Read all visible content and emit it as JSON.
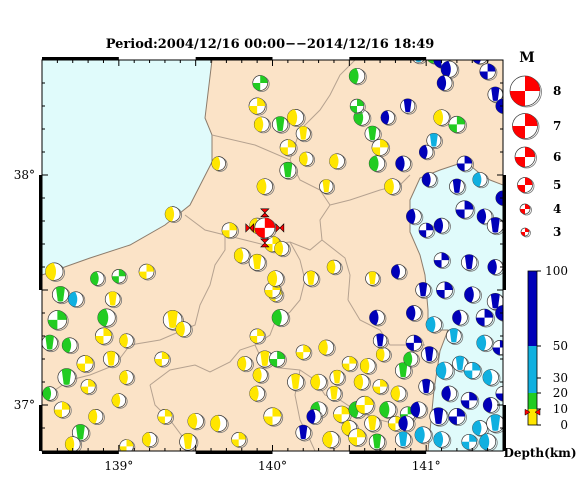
{
  "title": "Period:2004/12/16 00:00−−2014/12/16 18:49",
  "map": {
    "lon_range": [
      138.5,
      141.5
    ],
    "lat_range": [
      36.8,
      38.5
    ],
    "x_ticks": [
      {
        "value": 139,
        "label": "139°"
      },
      {
        "value": 140,
        "label": "140°"
      },
      {
        "value": 141,
        "label": "141°"
      }
    ],
    "y_ticks": [
      {
        "value": 38,
        "label": "38°"
      },
      {
        "value": 37,
        "label": "37°"
      }
    ],
    "colors": {
      "sea": "#e0fbfb",
      "land": "#fbe3c7",
      "border": "#b5a290",
      "coast": "#8c7c6c",
      "frame": "#000000"
    }
  },
  "magnitude_legend": {
    "header": "M",
    "items": [
      {
        "label": "8",
        "m": 8
      },
      {
        "label": "7",
        "m": 7
      },
      {
        "label": "6",
        "m": 6
      },
      {
        "label": "5",
        "m": 5
      },
      {
        "label": "4",
        "m": 4
      },
      {
        "label": "3",
        "m": 3
      }
    ]
  },
  "depth_legend": {
    "title": "Depth(km)",
    "ticks": [
      {
        "value": 0,
        "label": "0"
      },
      {
        "value": 10,
        "label": "10"
      },
      {
        "value": 20,
        "label": "20"
      },
      {
        "value": 30,
        "label": "30"
      },
      {
        "value": 50,
        "label": "50"
      },
      {
        "value": 100,
        "label": "100"
      }
    ],
    "bands": [
      {
        "from": 0,
        "to": 10,
        "color": "#ffe600"
      },
      {
        "from": 10,
        "to": 20,
        "color": "#22cc22"
      },
      {
        "from": 20,
        "to": 50,
        "color": "#10b0e0"
      },
      {
        "from": 50,
        "to": 100,
        "color": "#0000b8"
      }
    ],
    "marker_depth": 8
  },
  "highlight_event": {
    "lon": 139.95,
    "lat": 37.77,
    "m": 5.2,
    "depth": 8,
    "color": "#ff0000"
  },
  "events": [
    [
      138.58,
      37.58,
      4.8,
      5,
      "rs"
    ],
    [
      138.62,
      37.48,
      4.6,
      15,
      "th"
    ],
    [
      138.6,
      37.37,
      5.0,
      15,
      "ss"
    ],
    [
      138.72,
      37.46,
      4.4,
      25,
      "rs"
    ],
    [
      138.55,
      37.27,
      4.5,
      15,
      "th"
    ],
    [
      138.68,
      37.26,
      4.4,
      15,
      "rs"
    ],
    [
      138.78,
      37.18,
      4.6,
      5,
      "ss"
    ],
    [
      138.66,
      37.12,
      4.8,
      15,
      "th"
    ],
    [
      138.55,
      37.05,
      4.2,
      15,
      "rs"
    ],
    [
      138.63,
      36.98,
      4.5,
      5,
      "ss"
    ],
    [
      138.85,
      36.95,
      4.3,
      5,
      "rs"
    ],
    [
      138.75,
      36.88,
      4.6,
      15,
      "th"
    ],
    [
      138.9,
      37.3,
      4.6,
      5,
      "ss"
    ],
    [
      138.96,
      37.46,
      4.4,
      5,
      "th"
    ],
    [
      138.86,
      37.55,
      4.2,
      15,
      "rs"
    ],
    [
      139.0,
      37.56,
      4.2,
      15,
      "ss"
    ],
    [
      138.92,
      37.38,
      4.8,
      15,
      "rs"
    ],
    [
      138.95,
      37.2,
      4.5,
      5,
      "th"
    ],
    [
      139.05,
      37.28,
      4.2,
      5,
      "rs"
    ],
    [
      138.8,
      37.08,
      4.3,
      5,
      "ss"
    ],
    [
      139.18,
      37.58,
      4.4,
      5,
      "ss"
    ],
    [
      139.0,
      37.02,
      4.2,
      5,
      "rs"
    ],
    [
      139.35,
      37.37,
      5.0,
      5,
      "th"
    ],
    [
      139.42,
      37.33,
      4.4,
      5,
      "rs"
    ],
    [
      139.28,
      37.2,
      4.3,
      5,
      "ss"
    ],
    [
      139.05,
      37.12,
      4.2,
      5,
      "rs"
    ],
    [
      139.3,
      36.95,
      4.3,
      5,
      "ss"
    ],
    [
      139.5,
      36.93,
      4.5,
      5,
      "rs"
    ],
    [
      139.45,
      36.84,
      4.7,
      5,
      "th"
    ],
    [
      139.2,
      36.85,
      4.3,
      5,
      "rs"
    ],
    [
      139.05,
      36.82,
      4.2,
      5,
      "ss"
    ],
    [
      138.7,
      36.83,
      4.4,
      5,
      "rs"
    ],
    [
      139.9,
      37.3,
      4.3,
      5,
      "ss"
    ],
    [
      140.05,
      37.38,
      4.6,
      15,
      "rs"
    ],
    [
      140.25,
      37.55,
      4.4,
      5,
      "th"
    ],
    [
      140.02,
      37.48,
      4.2,
      5,
      "ss"
    ],
    [
      139.82,
      37.18,
      4.3,
      5,
      "rs"
    ],
    [
      139.95,
      37.2,
      4.6,
      5,
      "th"
    ],
    [
      140.03,
      37.2,
      4.5,
      15,
      "ss"
    ],
    [
      139.92,
      37.13,
      4.3,
      5,
      "rs"
    ],
    [
      140.2,
      37.23,
      4.3,
      5,
      "ss"
    ],
    [
      140.35,
      37.25,
      4.4,
      5,
      "rs"
    ],
    [
      140.15,
      37.1,
      4.6,
      5,
      "th"
    ],
    [
      139.9,
      37.05,
      4.4,
      5,
      "rs"
    ],
    [
      140.0,
      36.95,
      4.8,
      5,
      "ss"
    ],
    [
      139.65,
      36.92,
      4.6,
      5,
      "rs"
    ],
    [
      139.78,
      36.85,
      4.3,
      5,
      "ss"
    ],
    [
      140.3,
      36.98,
      4.5,
      15,
      "rs"
    ],
    [
      140.4,
      37.05,
      4.3,
      5,
      "th"
    ],
    [
      140.45,
      36.96,
      4.6,
      5,
      "ss"
    ],
    [
      140.5,
      36.9,
      4.4,
      5,
      "rs"
    ],
    [
      140.55,
      36.98,
      4.6,
      15,
      "rs"
    ],
    [
      140.6,
      37.0,
      4.8,
      5,
      "ss"
    ],
    [
      140.65,
      36.92,
      4.5,
      5,
      "th"
    ],
    [
      140.58,
      37.1,
      4.4,
      5,
      "rs"
    ],
    [
      140.7,
      37.08,
      4.3,
      5,
      "ss"
    ],
    [
      140.75,
      36.98,
      4.6,
      15,
      "rs"
    ],
    [
      140.55,
      36.86,
      4.7,
      5,
      "ss"
    ],
    [
      140.68,
      36.84,
      4.5,
      15,
      "th"
    ],
    [
      140.82,
      37.05,
      4.4,
      5,
      "rs"
    ],
    [
      140.8,
      36.92,
      4.3,
      5,
      "ss"
    ],
    [
      140.62,
      37.17,
      4.4,
      5,
      "rs"
    ],
    [
      140.5,
      37.18,
      4.3,
      5,
      "ss"
    ],
    [
      140.72,
      37.22,
      4.2,
      5,
      "rs"
    ],
    [
      140.85,
      37.15,
      4.5,
      15,
      "th"
    ],
    [
      140.88,
      36.96,
      4.4,
      15,
      "ss"
    ],
    [
      140.38,
      36.85,
      4.6,
      5,
      "rs"
    ],
    [
      140.2,
      36.88,
      4.4,
      75,
      "th"
    ],
    [
      140.27,
      36.95,
      4.3,
      50,
      "rs"
    ],
    [
      140.42,
      37.12,
      4.3,
      5,
      "th"
    ],
    [
      140.3,
      37.1,
      4.5,
      5,
      "rs"
    ],
    [
      140.9,
      37.2,
      4.3,
      15,
      "rs"
    ],
    [
      140.0,
      37.5,
      4.5,
      5,
      "ss"
    ],
    [
      140.4,
      37.6,
      4.2,
      5,
      "rs"
    ],
    [
      140.65,
      37.55,
      4.2,
      5,
      "th"
    ],
    [
      140.02,
      37.55,
      4.5,
      5,
      "rs"
    ],
    [
      139.95,
      37.95,
      4.5,
      5,
      "rs"
    ],
    [
      140.1,
      38.02,
      4.6,
      15,
      "th"
    ],
    [
      139.72,
      37.76,
      4.4,
      5,
      "ss"
    ],
    [
      139.35,
      37.83,
      4.4,
      5,
      "rs"
    ],
    [
      139.8,
      37.65,
      4.4,
      5,
      "rs"
    ],
    [
      139.9,
      37.62,
      4.6,
      5,
      "th"
    ],
    [
      140.0,
      37.7,
      4.5,
      5,
      "ss"
    ],
    [
      139.9,
      37.78,
      4.4,
      5,
      "rs"
    ],
    [
      140.06,
      37.68,
      4.3,
      5,
      "rs"
    ],
    [
      139.65,
      38.05,
      4.2,
      5,
      "rs"
    ],
    [
      140.2,
      38.18,
      4.3,
      5,
      "th"
    ],
    [
      140.22,
      38.07,
      4.2,
      5,
      "rs"
    ],
    [
      139.92,
      38.4,
      4.4,
      15,
      "ss"
    ],
    [
      139.9,
      38.3,
      4.6,
      5,
      "ss"
    ],
    [
      139.93,
      38.22,
      4.4,
      5,
      "rs"
    ],
    [
      140.05,
      38.22,
      4.5,
      15,
      "th"
    ],
    [
      140.15,
      38.25,
      4.6,
      5,
      "rs"
    ],
    [
      140.1,
      38.12,
      4.5,
      5,
      "ss"
    ],
    [
      140.58,
      38.25,
      4.5,
      15,
      "rs"
    ],
    [
      140.65,
      38.18,
      4.4,
      15,
      "th"
    ],
    [
      140.55,
      38.43,
      4.5,
      15,
      "rs"
    ],
    [
      140.55,
      38.3,
      4.2,
      15,
      "ss"
    ],
    [
      140.42,
      38.06,
      4.4,
      5,
      "rs"
    ],
    [
      140.35,
      37.95,
      4.2,
      5,
      "th"
    ],
    [
      140.7,
      38.12,
      4.6,
      5,
      "ss"
    ],
    [
      140.78,
      37.95,
      4.5,
      5,
      "rs"
    ],
    [
      140.88,
      38.3,
      4.3,
      75,
      "th"
    ],
    [
      140.75,
      38.25,
      4.2,
      75,
      "rs"
    ],
    [
      140.68,
      38.05,
      4.5,
      15,
      "rs"
    ],
    [
      140.76,
      38.55,
      4.3,
      5,
      "ss"
    ],
    [
      140.95,
      38.52,
      4.4,
      25,
      "th"
    ],
    [
      141.05,
      38.52,
      4.5,
      15,
      "rs"
    ],
    [
      141.1,
      38.5,
      4.5,
      75,
      "ss"
    ],
    [
      141.15,
      38.46,
      4.6,
      75,
      "rs"
    ],
    [
      141.28,
      38.55,
      4.4,
      75,
      "th"
    ],
    [
      141.35,
      38.52,
      4.7,
      75,
      "rs"
    ],
    [
      141.4,
      38.45,
      4.5,
      75,
      "ss"
    ],
    [
      141.45,
      38.35,
      4.4,
      75,
      "th"
    ],
    [
      141.5,
      38.3,
      4.3,
      75,
      "rs"
    ],
    [
      141.12,
      38.4,
      4.4,
      75,
      "rs"
    ],
    [
      141.1,
      38.25,
      4.5,
      5,
      "rs"
    ],
    [
      141.2,
      38.22,
      4.6,
      15,
      "ss"
    ],
    [
      141.05,
      38.15,
      4.3,
      25,
      "th"
    ],
    [
      141.0,
      38.1,
      4.2,
      75,
      "rs"
    ],
    [
      140.85,
      38.05,
      4.4,
      75,
      "rs"
    ],
    [
      141.25,
      38.05,
      4.4,
      75,
      "ss"
    ],
    [
      141.02,
      37.98,
      4.3,
      75,
      "rs"
    ],
    [
      141.2,
      37.95,
      4.4,
      75,
      "th"
    ],
    [
      141.35,
      37.98,
      4.3,
      25,
      "rs"
    ],
    [
      141.25,
      37.85,
      4.8,
      75,
      "ss"
    ],
    [
      141.38,
      37.82,
      4.4,
      75,
      "rs"
    ],
    [
      141.45,
      37.78,
      4.6,
      75,
      "th"
    ],
    [
      141.1,
      37.78,
      4.4,
      75,
      "rs"
    ],
    [
      141.0,
      37.76,
      4.3,
      75,
      "ss"
    ],
    [
      140.92,
      37.82,
      4.4,
      75,
      "rs"
    ],
    [
      141.5,
      37.9,
      4.3,
      75,
      "rs"
    ],
    [
      141.1,
      37.63,
      4.4,
      75,
      "ss"
    ],
    [
      141.28,
      37.62,
      4.5,
      75,
      "th"
    ],
    [
      141.45,
      37.6,
      4.4,
      75,
      "rs"
    ],
    [
      140.82,
      37.58,
      4.3,
      75,
      "rs"
    ],
    [
      140.98,
      37.5,
      4.4,
      75,
      "th"
    ],
    [
      141.12,
      37.5,
      4.6,
      75,
      "ss"
    ],
    [
      141.3,
      37.48,
      4.5,
      75,
      "rs"
    ],
    [
      141.45,
      37.45,
      4.6,
      75,
      "th"
    ],
    [
      141.5,
      37.4,
      4.4,
      75,
      "rs"
    ],
    [
      141.22,
      37.38,
      4.4,
      75,
      "rs"
    ],
    [
      141.38,
      37.38,
      4.7,
      75,
      "ss"
    ],
    [
      141.05,
      37.35,
      4.5,
      25,
      "rs"
    ],
    [
      141.18,
      37.3,
      4.4,
      25,
      "th"
    ],
    [
      141.38,
      37.27,
      4.5,
      25,
      "rs"
    ],
    [
      141.48,
      37.25,
      4.3,
      75,
      "ss"
    ],
    [
      140.92,
      37.4,
      4.4,
      75,
      "rs"
    ],
    [
      140.68,
      37.38,
      4.4,
      75,
      "rs"
    ],
    [
      140.7,
      37.28,
      4.2,
      75,
      "th"
    ],
    [
      140.92,
      37.27,
      4.5,
      75,
      "ss"
    ],
    [
      141.02,
      37.22,
      4.5,
      75,
      "th"
    ],
    [
      141.12,
      37.15,
      4.7,
      25,
      "rs"
    ],
    [
      141.22,
      37.18,
      4.4,
      25,
      "th"
    ],
    [
      141.3,
      37.15,
      4.6,
      25,
      "ss"
    ],
    [
      141.42,
      37.12,
      4.5,
      25,
      "rs"
    ],
    [
      141.15,
      37.05,
      4.4,
      75,
      "rs"
    ],
    [
      141.0,
      37.08,
      4.4,
      75,
      "th"
    ],
    [
      141.28,
      37.02,
      4.6,
      75,
      "ss"
    ],
    [
      141.42,
      37.0,
      4.4,
      75,
      "rs"
    ],
    [
      140.95,
      36.98,
      4.5,
      75,
      "rs"
    ],
    [
      141.08,
      36.95,
      4.8,
      75,
      "th"
    ],
    [
      141.2,
      36.95,
      4.6,
      75,
      "ss"
    ],
    [
      141.35,
      36.9,
      4.4,
      25,
      "rs"
    ],
    [
      141.45,
      36.92,
      4.8,
      25,
      "th"
    ],
    [
      140.98,
      36.87,
      4.6,
      25,
      "rs"
    ],
    [
      141.1,
      36.85,
      4.5,
      25,
      "rs"
    ],
    [
      141.28,
      36.84,
      4.4,
      25,
      "ss"
    ],
    [
      141.4,
      36.84,
      4.6,
      25,
      "rs"
    ],
    [
      140.85,
      36.85,
      4.5,
      25,
      "th"
    ],
    [
      140.87,
      36.92,
      4.4,
      75,
      "rs"
    ],
    [
      141.5,
      37.05,
      4.3,
      75,
      "ss"
    ]
  ]
}
